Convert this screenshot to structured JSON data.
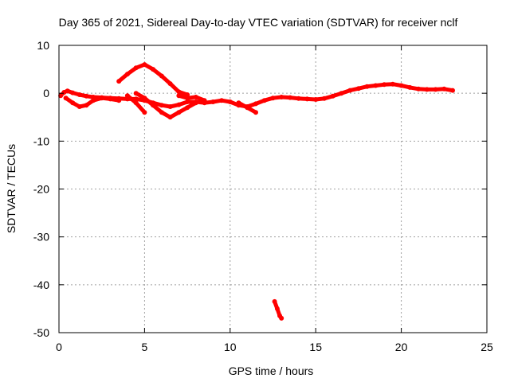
{
  "chart_data": {
    "type": "scatter",
    "title": "Day 365 of 2021, Sidereal Day-to-day VTEC variation (SDTVAR) for receiver nclf",
    "xlabel": "GPS time / hours",
    "ylabel": "SDTVAR / TECUs",
    "xlim": [
      0,
      25
    ],
    "ylim": [
      -50,
      10
    ],
    "xticks": [
      0,
      5,
      10,
      15,
      20,
      25
    ],
    "yticks": [
      -50,
      -40,
      -30,
      -20,
      -10,
      0,
      10
    ],
    "grid": true,
    "series_color": "#ff0000",
    "series": [
      {
        "name": "main-trace",
        "points": [
          [
            0.1,
            -0.5
          ],
          [
            0.3,
            0.2
          ],
          [
            0.5,
            0.5
          ],
          [
            0.8,
            0.1
          ],
          [
            1.2,
            -0.3
          ],
          [
            1.6,
            -0.6
          ],
          [
            2.0,
            -0.8
          ],
          [
            2.5,
            -0.9
          ],
          [
            3.0,
            -1.0
          ],
          [
            3.5,
            -1.1
          ],
          [
            4.0,
            -1.2
          ],
          [
            4.5,
            -1.2
          ],
          [
            5.0,
            -1.5
          ],
          [
            5.5,
            -2.0
          ],
          [
            6.0,
            -2.5
          ],
          [
            6.5,
            -2.8
          ],
          [
            7.0,
            -2.4
          ],
          [
            7.5,
            -1.8
          ],
          [
            8.0,
            -1.8
          ],
          [
            8.5,
            -2.0
          ],
          [
            9.0,
            -1.8
          ],
          [
            9.5,
            -1.5
          ],
          [
            10.0,
            -1.8
          ],
          [
            10.5,
            -2.5
          ],
          [
            11.0,
            -2.8
          ],
          [
            11.5,
            -2.2
          ],
          [
            12.0,
            -1.5
          ],
          [
            12.5,
            -1.0
          ],
          [
            13.0,
            -0.8
          ],
          [
            13.5,
            -0.9
          ],
          [
            14.0,
            -1.1
          ],
          [
            14.5,
            -1.2
          ],
          [
            15.0,
            -1.3
          ],
          [
            15.5,
            -1.1
          ],
          [
            16.0,
            -0.6
          ],
          [
            16.5,
            0.0
          ],
          [
            17.0,
            0.6
          ],
          [
            17.5,
            1.0
          ],
          [
            18.0,
            1.4
          ],
          [
            18.5,
            1.6
          ],
          [
            19.0,
            1.8
          ],
          [
            19.5,
            1.9
          ],
          [
            20.0,
            1.6
          ],
          [
            20.5,
            1.2
          ],
          [
            21.0,
            0.9
          ],
          [
            21.5,
            0.8
          ],
          [
            22.0,
            0.8
          ],
          [
            22.5,
            0.9
          ],
          [
            23.0,
            0.6
          ]
        ]
      },
      {
        "name": "upper-bump",
        "points": [
          [
            3.5,
            2.5
          ],
          [
            4.0,
            4.0
          ],
          [
            4.5,
            5.3
          ],
          [
            5.0,
            6.0
          ],
          [
            5.5,
            5.0
          ],
          [
            6.0,
            3.6
          ],
          [
            6.5,
            2.0
          ],
          [
            7.0,
            0.3
          ],
          [
            7.5,
            -0.3
          ]
        ]
      },
      {
        "name": "lower-branch-1",
        "points": [
          [
            0.4,
            -1.0
          ],
          [
            0.8,
            -2.0
          ],
          [
            1.2,
            -2.8
          ],
          [
            1.6,
            -2.5
          ],
          [
            2.0,
            -1.5
          ],
          [
            2.5,
            -1.0
          ],
          [
            3.0,
            -1.2
          ],
          [
            3.5,
            -1.5
          ]
        ]
      },
      {
        "name": "lower-branch-2",
        "points": [
          [
            4.0,
            -0.5
          ],
          [
            4.5,
            -2.0
          ],
          [
            5.0,
            -4.0
          ]
        ]
      },
      {
        "name": "lower-branch-3",
        "points": [
          [
            4.5,
            0.0
          ],
          [
            5.0,
            -1.0
          ],
          [
            5.5,
            -2.5
          ],
          [
            6.0,
            -4.0
          ],
          [
            6.5,
            -5.0
          ],
          [
            7.0,
            -4.0
          ],
          [
            7.5,
            -3.0
          ],
          [
            8.0,
            -2.0
          ]
        ]
      },
      {
        "name": "lower-branch-4",
        "points": [
          [
            7.0,
            -0.5
          ],
          [
            7.5,
            -1.0
          ],
          [
            8.0,
            -0.8
          ],
          [
            8.5,
            -1.5
          ]
        ]
      },
      {
        "name": "lower-branch-5",
        "points": [
          [
            10.5,
            -2.0
          ],
          [
            11.0,
            -3.0
          ],
          [
            11.5,
            -4.0
          ]
        ]
      },
      {
        "name": "outlier",
        "points": [
          [
            12.6,
            -43.5
          ],
          [
            12.75,
            -45.0
          ],
          [
            12.9,
            -46.5
          ],
          [
            13.0,
            -47.0
          ]
        ]
      }
    ]
  }
}
